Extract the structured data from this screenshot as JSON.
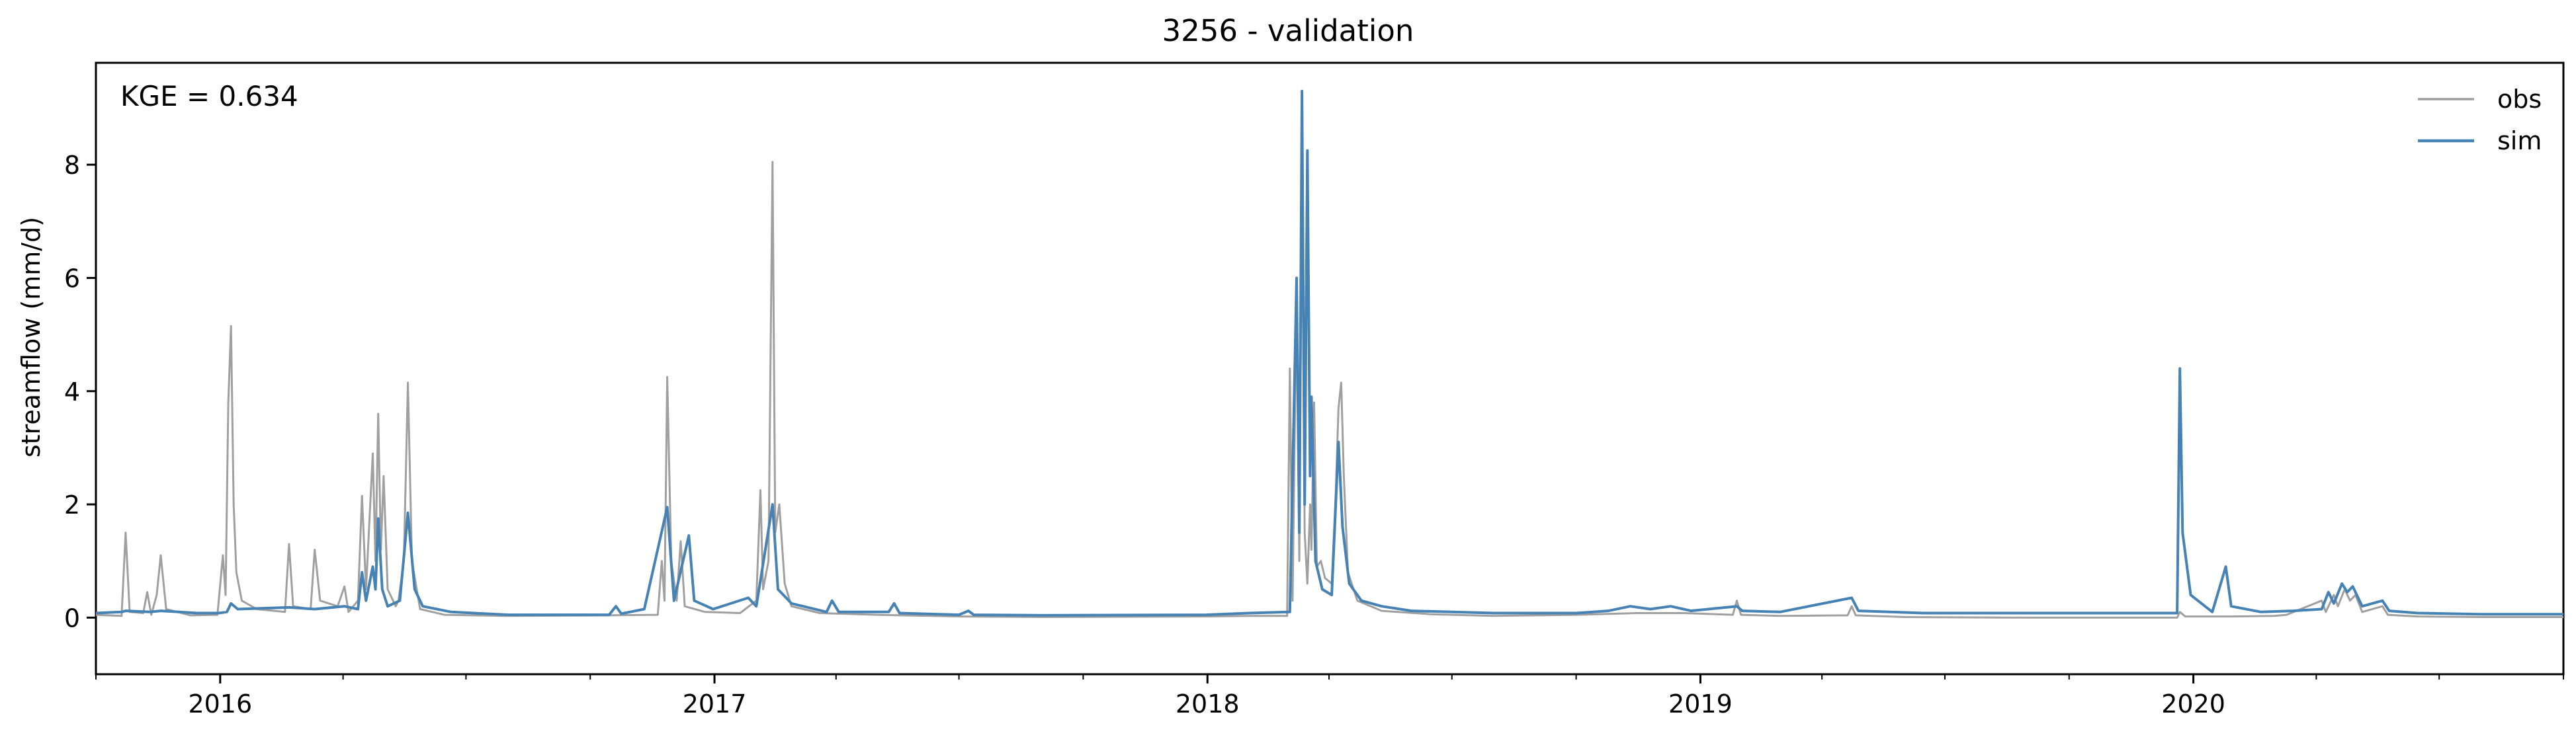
{
  "chart_data": {
    "type": "line",
    "title": "3256 - validation",
    "xlabel": "",
    "ylabel": "streamflow (mm/d)",
    "annotation": "KGE = 0.634",
    "xlim": [
      "2015-10-01",
      "2020-10-01"
    ],
    "ylim": [
      -1.0,
      9.8
    ],
    "yticks": [
      0,
      2,
      4,
      6,
      8
    ],
    "xticks": [
      {
        "label": "2016",
        "date": "2016-01-01"
      },
      {
        "label": "2017",
        "date": "2017-01-01"
      },
      {
        "label": "2018",
        "date": "2018-01-01"
      },
      {
        "label": "2019",
        "date": "2019-01-01"
      },
      {
        "label": "2020",
        "date": "2020-01-01"
      }
    ],
    "legend_position": "top-right",
    "grid": false,
    "series": [
      {
        "name": "obs",
        "color": "#a0a0a0",
        "points": [
          [
            "2015-10-01",
            0.05
          ],
          [
            "2015-10-20",
            0.03
          ],
          [
            "2015-10-23",
            1.5
          ],
          [
            "2015-10-26",
            0.1
          ],
          [
            "2015-11-05",
            0.08
          ],
          [
            "2015-11-08",
            0.45
          ],
          [
            "2015-11-11",
            0.05
          ],
          [
            "2015-11-15",
            0.4
          ],
          [
            "2015-11-18",
            1.1
          ],
          [
            "2015-11-22",
            0.15
          ],
          [
            "2015-12-10",
            0.04
          ],
          [
            "2015-12-30",
            0.05
          ],
          [
            "2016-01-03",
            1.1
          ],
          [
            "2016-01-05",
            0.4
          ],
          [
            "2016-01-07",
            3.8
          ],
          [
            "2016-01-09",
            5.15
          ],
          [
            "2016-01-11",
            2.0
          ],
          [
            "2016-01-13",
            0.8
          ],
          [
            "2016-01-17",
            0.3
          ],
          [
            "2016-01-28",
            0.15
          ],
          [
            "2016-02-18",
            0.1
          ],
          [
            "2016-02-21",
            1.3
          ],
          [
            "2016-02-24",
            0.2
          ],
          [
            "2016-03-08",
            0.15
          ],
          [
            "2016-03-11",
            1.2
          ],
          [
            "2016-03-15",
            0.3
          ],
          [
            "2016-03-28",
            0.2
          ],
          [
            "2016-04-02",
            0.55
          ],
          [
            "2016-04-05",
            0.1
          ],
          [
            "2016-04-12",
            0.3
          ],
          [
            "2016-04-15",
            2.15
          ],
          [
            "2016-04-18",
            0.5
          ],
          [
            "2016-04-23",
            2.9
          ],
          [
            "2016-04-25",
            1.0
          ],
          [
            "2016-04-27",
            3.6
          ],
          [
            "2016-04-29",
            1.2
          ],
          [
            "2016-05-01",
            2.5
          ],
          [
            "2016-05-04",
            0.5
          ],
          [
            "2016-05-10",
            0.2
          ],
          [
            "2016-05-12",
            0.3
          ],
          [
            "2016-05-16",
            1.0
          ],
          [
            "2016-05-19",
            4.15
          ],
          [
            "2016-05-22",
            1.0
          ],
          [
            "2016-05-28",
            0.15
          ],
          [
            "2016-06-15",
            0.05
          ],
          [
            "2016-08-01",
            0.03
          ],
          [
            "2016-10-15",
            0.04
          ],
          [
            "2016-11-20",
            0.05
          ],
          [
            "2016-11-23",
            1.0
          ],
          [
            "2016-11-25",
            0.3
          ],
          [
            "2016-11-27",
            4.25
          ],
          [
            "2016-11-30",
            1.0
          ],
          [
            "2016-12-04",
            0.3
          ],
          [
            "2016-12-07",
            1.35
          ],
          [
            "2016-12-10",
            0.2
          ],
          [
            "2016-12-25",
            0.1
          ],
          [
            "2017-01-20",
            0.08
          ],
          [
            "2017-02-01",
            0.3
          ],
          [
            "2017-02-04",
            2.25
          ],
          [
            "2017-02-06",
            0.5
          ],
          [
            "2017-02-10",
            1.0
          ],
          [
            "2017-02-13",
            8.05
          ],
          [
            "2017-02-15",
            1.5
          ],
          [
            "2017-02-18",
            2.0
          ],
          [
            "2017-02-22",
            0.6
          ],
          [
            "2017-02-27",
            0.2
          ],
          [
            "2017-03-20",
            0.08
          ],
          [
            "2017-05-01",
            0.05
          ],
          [
            "2017-07-01",
            0.02
          ],
          [
            "2017-09-01",
            0.01
          ],
          [
            "2017-12-31",
            0.02
          ],
          [
            "2018-02-01",
            0.03
          ],
          [
            "2018-03-01",
            0.03
          ],
          [
            "2018-03-03",
            4.4
          ],
          [
            "2018-03-05",
            0.3
          ],
          [
            "2018-03-08",
            5.9
          ],
          [
            "2018-03-10",
            1.0
          ],
          [
            "2018-03-12",
            7.8
          ],
          [
            "2018-03-14",
            1.5
          ],
          [
            "2018-03-16",
            0.6
          ],
          [
            "2018-03-18",
            2.0
          ],
          [
            "2018-03-19",
            1.2
          ],
          [
            "2018-03-21",
            3.8
          ],
          [
            "2018-03-23",
            0.9
          ],
          [
            "2018-03-26",
            1.0
          ],
          [
            "2018-03-29",
            0.7
          ],
          [
            "2018-04-03",
            0.6
          ],
          [
            "2018-04-06",
            2.2
          ],
          [
            "2018-04-08",
            3.7
          ],
          [
            "2018-04-10",
            4.15
          ],
          [
            "2018-04-12",
            2.5
          ],
          [
            "2018-04-15",
            0.8
          ],
          [
            "2018-04-22",
            0.3
          ],
          [
            "2018-05-10",
            0.12
          ],
          [
            "2018-06-15",
            0.06
          ],
          [
            "2018-08-01",
            0.03
          ],
          [
            "2018-10-01",
            0.05
          ],
          [
            "2018-11-15",
            0.08
          ],
          [
            "2018-12-20",
            0.08
          ],
          [
            "2019-01-25",
            0.05
          ],
          [
            "2019-01-28",
            0.3
          ],
          [
            "2019-01-31",
            0.05
          ],
          [
            "2019-03-01",
            0.03
          ],
          [
            "2019-04-20",
            0.04
          ],
          [
            "2019-04-23",
            0.2
          ],
          [
            "2019-04-26",
            0.04
          ],
          [
            "2019-06-01",
            0.01
          ],
          [
            "2019-09-01",
            0.0
          ],
          [
            "2019-12-20",
            0.0
          ],
          [
            "2019-12-22",
            0.1
          ],
          [
            "2019-12-26",
            0.02
          ],
          [
            "2020-02-01",
            0.02
          ],
          [
            "2020-03-01",
            0.03
          ],
          [
            "2020-03-10",
            0.05
          ],
          [
            "2020-04-05",
            0.3
          ],
          [
            "2020-04-08",
            0.1
          ],
          [
            "2020-04-14",
            0.4
          ],
          [
            "2020-04-17",
            0.2
          ],
          [
            "2020-04-22",
            0.5
          ],
          [
            "2020-04-26",
            0.3
          ],
          [
            "2020-04-30",
            0.4
          ],
          [
            "2020-05-05",
            0.1
          ],
          [
            "2020-05-20",
            0.2
          ],
          [
            "2020-05-24",
            0.05
          ],
          [
            "2020-06-15",
            0.02
          ],
          [
            "2020-08-01",
            0.01
          ],
          [
            "2020-10-01",
            0.01
          ]
        ]
      },
      {
        "name": "sim",
        "color": "#4682b4",
        "points": [
          [
            "2015-10-01",
            0.08
          ],
          [
            "2015-10-20",
            0.1
          ],
          [
            "2015-10-23",
            0.12
          ],
          [
            "2015-11-10",
            0.1
          ],
          [
            "2015-11-18",
            0.12
          ],
          [
            "2015-12-15",
            0.08
          ],
          [
            "2015-12-31",
            0.08
          ],
          [
            "2016-01-06",
            0.1
          ],
          [
            "2016-01-09",
            0.25
          ],
          [
            "2016-01-14",
            0.15
          ],
          [
            "2016-02-21",
            0.18
          ],
          [
            "2016-03-11",
            0.15
          ],
          [
            "2016-04-02",
            0.2
          ],
          [
            "2016-04-12",
            0.15
          ],
          [
            "2016-04-15",
            0.8
          ],
          [
            "2016-04-18",
            0.3
          ],
          [
            "2016-04-23",
            0.9
          ],
          [
            "2016-04-25",
            0.5
          ],
          [
            "2016-04-27",
            1.75
          ],
          [
            "2016-04-30",
            0.5
          ],
          [
            "2016-05-04",
            0.2
          ],
          [
            "2016-05-13",
            0.3
          ],
          [
            "2016-05-19",
            1.85
          ],
          [
            "2016-05-24",
            0.5
          ],
          [
            "2016-05-30",
            0.2
          ],
          [
            "2016-06-20",
            0.1
          ],
          [
            "2016-08-01",
            0.05
          ],
          [
            "2016-10-15",
            0.05
          ],
          [
            "2016-10-20",
            0.2
          ],
          [
            "2016-10-24",
            0.07
          ],
          [
            "2016-11-10",
            0.15
          ],
          [
            "2016-11-27",
            1.95
          ],
          [
            "2016-12-02",
            0.3
          ],
          [
            "2016-12-13",
            1.45
          ],
          [
            "2016-12-17",
            0.3
          ],
          [
            "2016-12-31",
            0.15
          ],
          [
            "2017-01-26",
            0.35
          ],
          [
            "2017-02-01",
            0.2
          ],
          [
            "2017-02-13",
            2.0
          ],
          [
            "2017-02-17",
            0.5
          ],
          [
            "2017-02-27",
            0.25
          ],
          [
            "2017-03-25",
            0.1
          ],
          [
            "2017-03-29",
            0.3
          ],
          [
            "2017-04-03",
            0.1
          ],
          [
            "2017-05-10",
            0.1
          ],
          [
            "2017-05-14",
            0.25
          ],
          [
            "2017-05-18",
            0.08
          ],
          [
            "2017-07-01",
            0.05
          ],
          [
            "2017-07-08",
            0.12
          ],
          [
            "2017-07-12",
            0.05
          ],
          [
            "2017-09-01",
            0.04
          ],
          [
            "2017-12-31",
            0.05
          ],
          [
            "2018-02-01",
            0.08
          ],
          [
            "2018-03-03",
            0.1
          ],
          [
            "2018-03-08",
            6.0
          ],
          [
            "2018-03-10",
            1.5
          ],
          [
            "2018-03-12",
            9.3
          ],
          [
            "2018-03-14",
            2.0
          ],
          [
            "2018-03-16",
            8.25
          ],
          [
            "2018-03-18",
            2.5
          ],
          [
            "2018-03-19",
            3.9
          ],
          [
            "2018-03-22",
            1.0
          ],
          [
            "2018-03-27",
            0.5
          ],
          [
            "2018-04-03",
            0.4
          ],
          [
            "2018-04-08",
            3.1
          ],
          [
            "2018-04-11",
            1.6
          ],
          [
            "2018-04-16",
            0.6
          ],
          [
            "2018-04-25",
            0.3
          ],
          [
            "2018-05-10",
            0.2
          ],
          [
            "2018-06-01",
            0.12
          ],
          [
            "2018-08-01",
            0.08
          ],
          [
            "2018-10-01",
            0.08
          ],
          [
            "2018-10-25",
            0.12
          ],
          [
            "2018-11-10",
            0.2
          ],
          [
            "2018-11-25",
            0.15
          ],
          [
            "2018-12-10",
            0.2
          ],
          [
            "2018-12-25",
            0.12
          ],
          [
            "2019-01-28",
            0.2
          ],
          [
            "2019-02-01",
            0.12
          ],
          [
            "2019-03-01",
            0.1
          ],
          [
            "2019-04-23",
            0.35
          ],
          [
            "2019-04-28",
            0.12
          ],
          [
            "2019-06-15",
            0.08
          ],
          [
            "2019-09-01",
            0.08
          ],
          [
            "2019-12-20",
            0.08
          ],
          [
            "2019-12-22",
            4.4
          ],
          [
            "2019-12-24",
            1.5
          ],
          [
            "2019-12-30",
            0.4
          ],
          [
            "2020-01-15",
            0.1
          ],
          [
            "2020-01-25",
            0.9
          ],
          [
            "2020-01-29",
            0.2
          ],
          [
            "2020-02-20",
            0.1
          ],
          [
            "2020-03-15",
            0.12
          ],
          [
            "2020-04-05",
            0.15
          ],
          [
            "2020-04-10",
            0.45
          ],
          [
            "2020-04-14",
            0.25
          ],
          [
            "2020-04-20",
            0.6
          ],
          [
            "2020-04-24",
            0.45
          ],
          [
            "2020-04-28",
            0.55
          ],
          [
            "2020-05-05",
            0.2
          ],
          [
            "2020-05-20",
            0.3
          ],
          [
            "2020-05-25",
            0.12
          ],
          [
            "2020-06-15",
            0.08
          ],
          [
            "2020-08-01",
            0.06
          ],
          [
            "2020-10-01",
            0.06
          ]
        ]
      }
    ]
  }
}
